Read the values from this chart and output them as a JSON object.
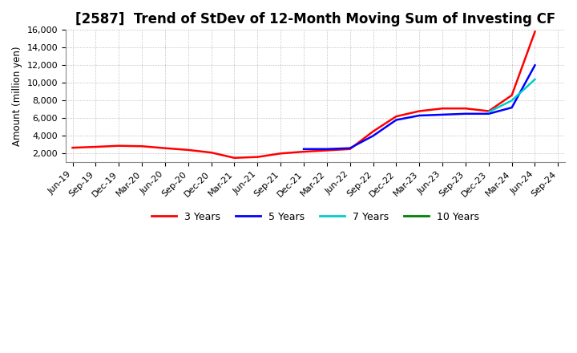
{
  "title": "[2587]  Trend of StDev of 12-Month Moving Sum of Investing CF",
  "ylabel": "Amount (million yen)",
  "ylim": [
    1000,
    16000
  ],
  "yticks": [
    2000,
    4000,
    6000,
    8000,
    10000,
    12000,
    14000,
    16000
  ],
  "background_color": "#ffffff",
  "grid_color": "#999999",
  "series": {
    "3years": {
      "color": "#ff0000",
      "label": "3 Years",
      "dates": [
        "Jun-19",
        "Sep-19",
        "Dec-19",
        "Mar-20",
        "Jun-20",
        "Sep-20",
        "Dec-20",
        "Mar-21",
        "Jun-21",
        "Sep-21",
        "Dec-21",
        "Mar-22",
        "Jun-22",
        "Sep-22",
        "Dec-22",
        "Mar-23",
        "Jun-23",
        "Sep-23",
        "Dec-23",
        "Mar-24",
        "Jun-24"
      ],
      "values": [
        2650,
        2750,
        2870,
        2820,
        2600,
        2400,
        2100,
        1500,
        1600,
        2000,
        2200,
        2350,
        2500,
        4500,
        6200,
        6800,
        7100,
        7100,
        6800,
        8600,
        15800
      ]
    },
    "5years": {
      "color": "#0000ff",
      "label": "5 Years",
      "dates": [
        "Dec-21",
        "Mar-22",
        "Jun-22",
        "Sep-22",
        "Dec-22",
        "Mar-23",
        "Jun-23",
        "Sep-23",
        "Dec-23",
        "Mar-24",
        "Jun-24"
      ],
      "values": [
        2500,
        2500,
        2600,
        4000,
        5800,
        6300,
        6400,
        6500,
        6500,
        7200,
        12000
      ]
    },
    "7years": {
      "color": "#00cccc",
      "label": "7 Years",
      "dates": [
        "Dec-23",
        "Mar-24",
        "Jun-24"
      ],
      "values": [
        6700,
        8000,
        10400
      ]
    },
    "10years": {
      "color": "#008000",
      "label": "10 Years",
      "dates": [],
      "values": []
    }
  },
  "xtick_labels": [
    "Jun-19",
    "Sep-19",
    "Dec-19",
    "Mar-20",
    "Jun-20",
    "Sep-20",
    "Dec-20",
    "Mar-21",
    "Jun-21",
    "Sep-21",
    "Dec-21",
    "Mar-22",
    "Jun-22",
    "Sep-22",
    "Dec-22",
    "Mar-23",
    "Jun-23",
    "Sep-23",
    "Dec-23",
    "Mar-24",
    "Jun-24",
    "Sep-24"
  ],
  "title_fontsize": 12,
  "tick_fontsize": 8,
  "legend_fontsize": 9
}
